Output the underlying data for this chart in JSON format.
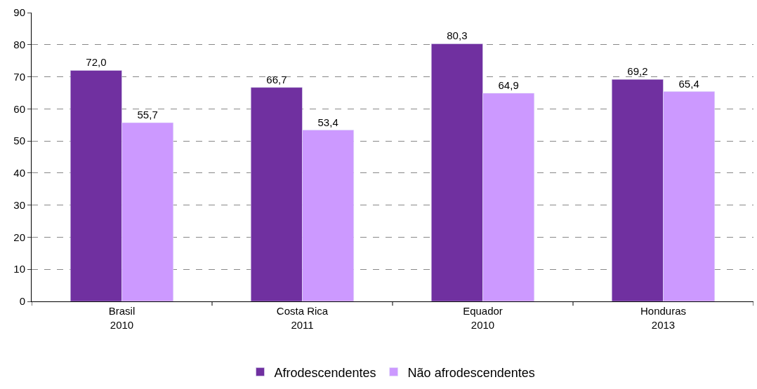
{
  "chart_data": {
    "type": "bar",
    "categories": [
      "Brasil\n2010",
      "Costa Rica\n2011",
      "Equador\n2010",
      "Honduras\n2013"
    ],
    "series": [
      {
        "name": "Afrodescendentes",
        "color": "#7030a0",
        "values": [
          72.0,
          66.7,
          80.3,
          69.2
        ],
        "value_labels": [
          "72,0",
          "66,7",
          "80,3",
          "69,2"
        ]
      },
      {
        "name": "Não afrodescendentes",
        "color": "#cc99ff",
        "values": [
          55.7,
          53.4,
          64.9,
          65.4
        ],
        "value_labels": [
          "55,7",
          "53,4",
          "64,9",
          "65,4"
        ]
      }
    ],
    "ylim": [
      0,
      90
    ],
    "yticks": [
      0,
      10,
      20,
      30,
      40,
      50,
      60,
      70,
      80,
      90
    ],
    "grid": "y",
    "legend": "bottom"
  }
}
